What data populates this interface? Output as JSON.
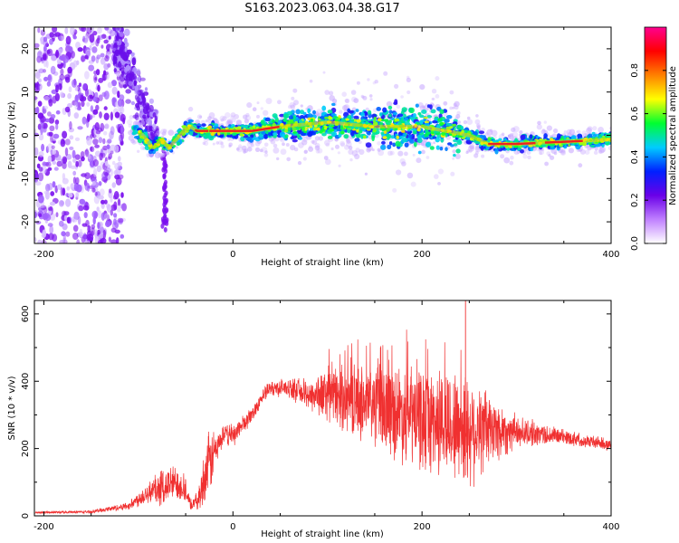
{
  "title": "S163.2023.063.04.38.G17",
  "colors": {
    "snr_line": "#f03030",
    "highlight": "#ee2222",
    "background": "#ffffff",
    "frame": "#000000"
  },
  "chart_data": [
    {
      "type": "heatmap",
      "xlabel": "Height of straight line (km)",
      "ylabel": "Frequency (Hz)",
      "xlim": [
        -210,
        400
      ],
      "ylim": [
        -25,
        25
      ],
      "xticks": [
        -200,
        0,
        200,
        400
      ],
      "yticks": [
        -20,
        -10,
        0,
        10,
        20
      ],
      "colorbar": {
        "label": "Normalized spectral amplitude",
        "range": [
          0,
          1
        ],
        "ticks": [
          0.0,
          0.2,
          0.4,
          0.6,
          0.8
        ],
        "colormap": [
          "#ffffff",
          "#c080ff",
          "#6a00e8",
          "#0020ff",
          "#00ccff",
          "#00ff30",
          "#ffff00",
          "#ff8000",
          "#ff0000",
          "#ff0090"
        ]
      },
      "ridge": {
        "x": [
          -110,
          -95,
          -85,
          -75,
          -68,
          -60,
          -52,
          -45,
          -38,
          -30,
          -20,
          -10,
          0,
          20,
          50,
          100,
          150,
          200,
          250,
          270,
          300,
          350,
          400
        ],
        "y": [
          2,
          0,
          -3,
          -1,
          -3,
          -1,
          1,
          2,
          1,
          1,
          1,
          1,
          1,
          1,
          2,
          3,
          2,
          2,
          0,
          -2,
          -2,
          -1.5,
          -1
        ]
      },
      "grid": false,
      "legend": "none"
    },
    {
      "type": "line",
      "xlabel": "Height of straight line (km)",
      "ylabel": "SNR (10 * v/v)",
      "xlim": [
        -210,
        400
      ],
      "ylim": [
        0,
        640
      ],
      "xticks": [
        -200,
        0,
        200,
        400
      ],
      "yticks": [
        0,
        200,
        400,
        600
      ],
      "envelope": {
        "x": [
          -210,
          -150,
          -110,
          -100,
          -90,
          -80,
          -70,
          -60,
          -50,
          -45,
          -40,
          -35,
          -30,
          -25,
          -20,
          -15,
          -10,
          0,
          10,
          20,
          30,
          40,
          60,
          80,
          100,
          150,
          200,
          250,
          300,
          350,
          400
        ],
        "mean": [
          10,
          12,
          30,
          50,
          70,
          80,
          90,
          100,
          80,
          30,
          40,
          60,
          120,
          150,
          190,
          210,
          240,
          240,
          270,
          300,
          350,
          380,
          380,
          360,
          360,
          330,
          290,
          260,
          250,
          235,
          210
        ],
        "spread": [
          3,
          4,
          10,
          20,
          30,
          45,
          50,
          45,
          35,
          15,
          15,
          40,
          70,
          90,
          60,
          35,
          25,
          30,
          25,
          20,
          20,
          20,
          25,
          40,
          70,
          110,
          140,
          150,
          40,
          20,
          15
        ]
      },
      "grid": false,
      "legend": "none"
    }
  ]
}
